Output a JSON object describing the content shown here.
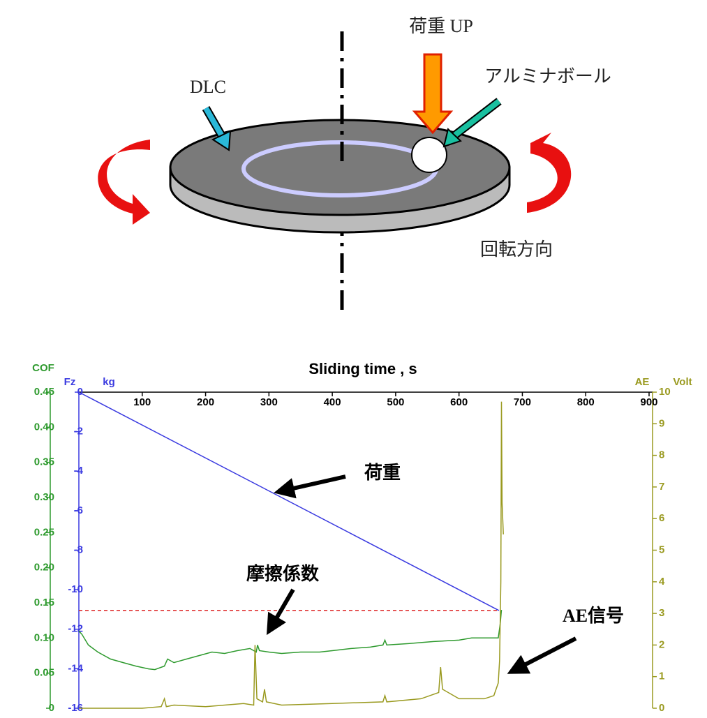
{
  "diagram": {
    "labels": [
      "荷重 UP",
      "アルミナボール",
      "DLC",
      "回転方向"
    ]
  },
  "chart_data": {
    "type": "line",
    "title": "Sliding time , s",
    "xlim": [
      0,
      900
    ],
    "xticks": [
      100,
      200,
      300,
      400,
      500,
      600,
      700,
      800,
      900
    ],
    "ylabel": "COF",
    "ylim": [
      0,
      0.45
    ],
    "yticks": [
      0,
      0.05,
      {
        "value": 0.1,
        "label": "0.10"
      },
      0.15,
      {
        "value": 0.2,
        "label": "0.20"
      },
      0.25,
      {
        "value": 0.3,
        "label": "0.30"
      },
      0.35,
      {
        "value": 0.4,
        "label": "0.40"
      },
      0.45
    ],
    "y3label": "Fz",
    "y3unit": "kg",
    "y3lim": [
      -16,
      0
    ],
    "y3ticks": [
      0,
      -2,
      -4,
      -6,
      -8,
      -10,
      -12,
      -14,
      -16
    ],
    "y2label": "AE",
    "y2unit": "Volt",
    "y2lim": [
      0,
      10
    ],
    "y2ticks": [
      0,
      1,
      2,
      3,
      4,
      5,
      6,
      7,
      8,
      9,
      10
    ],
    "series": [
      {
        "axis": "y3",
        "color": "#3a3ae0",
        "x": [
          0,
          663
        ],
        "values": [
          0,
          -11.05
        ]
      },
      {
        "axis": "y",
        "color": "#2e9a2e",
        "x": [
          0,
          5,
          15,
          30,
          50,
          70,
          90,
          110,
          120,
          135,
          140,
          150,
          170,
          190,
          210,
          230,
          250,
          270,
          280,
          282,
          285,
          300,
          320,
          350,
          380,
          400,
          430,
          460,
          480,
          483,
          486,
          520,
          560,
          600,
          620,
          640,
          655,
          662,
          665,
          667
        ],
        "values": [
          0.11,
          0.105,
          0.09,
          0.08,
          0.07,
          0.065,
          0.06,
          0.056,
          0.055,
          0.06,
          0.07,
          0.065,
          0.07,
          0.075,
          0.08,
          0.078,
          0.082,
          0.085,
          0.08,
          0.09,
          0.082,
          0.08,
          0.078,
          0.08,
          0.08,
          0.082,
          0.085,
          0.087,
          0.09,
          0.097,
          0.09,
          0.092,
          0.095,
          0.097,
          0.1,
          0.1,
          0.1,
          0.1,
          0.12,
          0.14
        ]
      },
      {
        "axis": "y2",
        "color": "#9a9a20",
        "x": [
          0,
          100,
          130,
          135,
          138,
          150,
          200,
          260,
          276,
          278,
          281,
          290,
          293,
          296,
          320,
          400,
          480,
          483,
          486,
          540,
          568,
          571,
          574,
          600,
          640,
          655,
          662,
          664,
          666,
          667,
          668,
          670
        ],
        "values": [
          0,
          0,
          0.05,
          0.3,
          0.05,
          0.1,
          0.05,
          0.15,
          0.1,
          2,
          0.3,
          0.2,
          0.6,
          0.2,
          0.1,
          0.15,
          0.2,
          0.4,
          0.2,
          0.3,
          0.5,
          1.3,
          0.6,
          0.3,
          0.3,
          0.4,
          0.8,
          1.5,
          4,
          9.7,
          6.5,
          5.5
        ]
      }
    ],
    "reference_line": {
      "axis": "y3",
      "value": -11.05,
      "color": "#dd2222"
    },
    "annotations": [
      "荷重",
      "摩擦係数",
      "AE信号"
    ]
  }
}
